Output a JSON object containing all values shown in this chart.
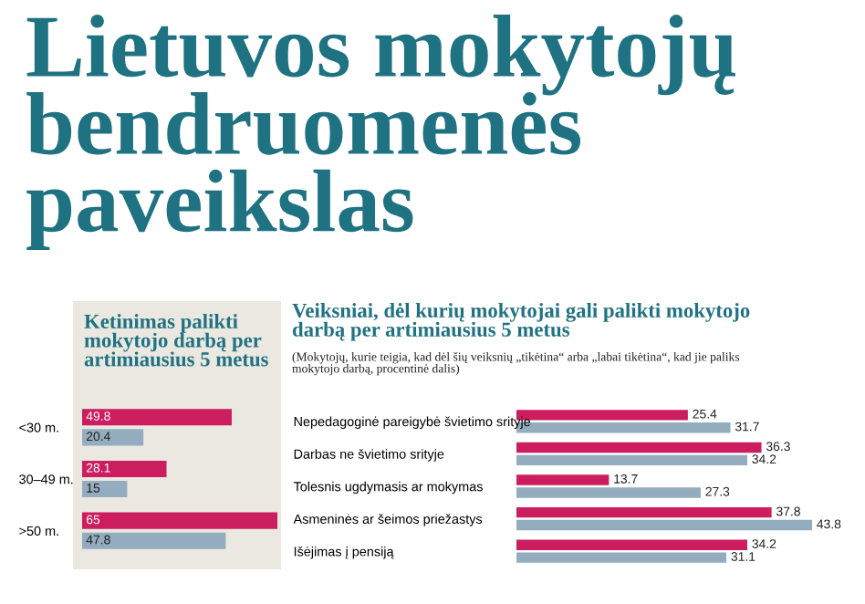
{
  "chart_data": [
    {
      "type": "other",
      "title": "Lietuvos mokytojų bendruomenės paveikslas"
    },
    {
      "type": "bar",
      "orientation": "horizontal",
      "title": "Ketinimas palikti mokytojo darbą per artimiausius 5 metus",
      "categories": [
        "<30 m.",
        "30–49 m.",
        ">50 m."
      ],
      "data_labels": true,
      "tick_labels": "y",
      "series": [
        {
          "color": "#cc1e5f",
          "values": [
            49.8,
            28.1,
            65
          ]
        },
        {
          "color": "#93adbf",
          "values": [
            20.4,
            15,
            47.8
          ]
        }
      ]
    },
    {
      "type": "bar",
      "orientation": "horizontal",
      "title": "Veiksniai, dėl kurių mokytojai gali palikti mokytojo darbą per artimiausius 5 metus",
      "subtitle": "(Mokytojų, kurie teigia, kad dėl šių veiksnių „tikėtina“ arba „labai tikėtina“, kad jie paliks mokytojo darbą, procentinė dalis)",
      "categories": [
        "Nepedagoginė pareigybė švietimo srityje",
        "Darbas ne švietimo srityje",
        "Tolesnis ugdymasis ar mokymas",
        "Asmeninės ar šeimos priežastys",
        "Išėjimas į pensiją"
      ],
      "data_labels": true,
      "tick_labels": "y",
      "series": [
        {
          "color": "#cc1e5f",
          "values": [
            25.4,
            36.3,
            13.7,
            37.8,
            34.2
          ]
        },
        {
          "color": "#93adbf",
          "values": [
            31.7,
            34.2,
            27.3,
            43.8,
            31.1
          ]
        }
      ]
    }
  ]
}
